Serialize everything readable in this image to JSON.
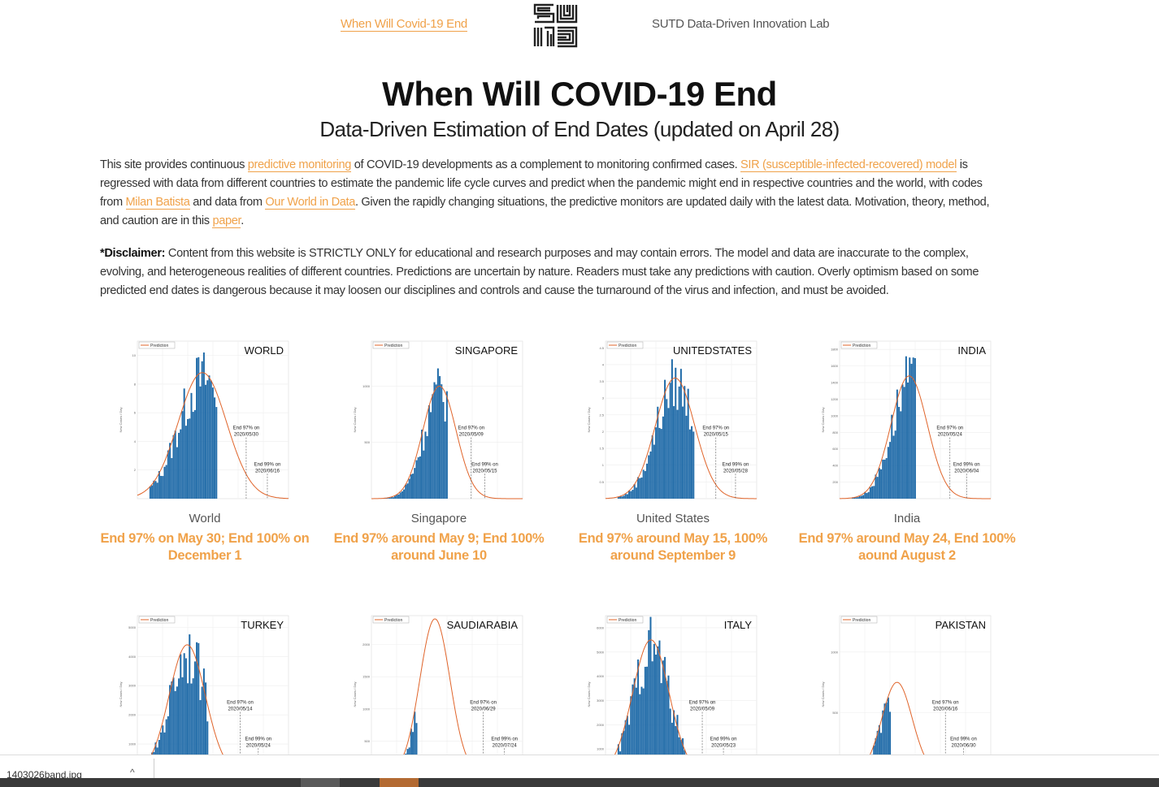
{
  "nav": {
    "home_link": "When Will Covid-19 End",
    "lab": "SUTD Data-Driven Innovation Lab",
    "logo_text": "SUTD"
  },
  "header": {
    "title": "When Will COVID-19 End",
    "subtitle": "Data-Driven Estimation of End Dates (updated on April 28)"
  },
  "intro": {
    "t1": "This site provides continuous ",
    "l1": "predictive monitoring",
    "t2": " of COVID-19 developments as a complement to monitoring confirmed cases. ",
    "l2": "SIR (susceptible-infected-recovered) model",
    "t3": " is regressed with data from different countries to estimate the pandemic life cycle curves and predict when the pandemic might end in respective countries and the world, with codes from ",
    "l3": "Milan Batista",
    "t4": " and data from ",
    "l4": "Our World in Data",
    "t5": ". Given the rapidly changing situations, the predictive monitors are updated daily with the latest data. Motivation, theory, method, and caution are in this ",
    "l5": "paper",
    "t6": "."
  },
  "disclaimer": {
    "label": "*Disclaimer:",
    "text": " Content from this website is STRICTLY ONLY for educational and research purposes and may contain errors. The model and data are inaccurate to the complex, evolving, and heterogeneous realities of different countries. Predictions are uncertain by nature. Readers must take any predictions with caution. Overly optimism based on some predicted end dates is dangerous because it may loosen our disciplines and controls and cause the turnaround of the virus and infection, and must be avoided."
  },
  "chart_common": {
    "legend": "Prediction",
    "ylabel": "New Cases / Day"
  },
  "chart_data": [
    {
      "type": "bar",
      "title": "WORLD",
      "caption": "World",
      "prediction": "End 97% on May 30; End 100% on December 1",
      "end97": "End 97% on",
      "end97_date": "2020/05/30",
      "end99": "End 99% on",
      "end99_date": "2020/06/16",
      "yticks": [
        "2",
        "4",
        "6",
        "8",
        "10"
      ],
      "ymax": 11,
      "peak": 8.8,
      "peak_frac": 0.43,
      "width_frac": 0.16,
      "data_end_frac": 0.52,
      "v97_frac": 0.72,
      "v99_frac": 0.86
    },
    {
      "type": "bar",
      "title": "SINGAPORE",
      "caption": "Singapore",
      "prediction": "End 97% around May 9; End 100% around June 10",
      "end97": "End 97% on",
      "end97_date": "2020/05/09",
      "end99": "End 99% on",
      "end99_date": "2020/05/15",
      "yticks": [
        "500",
        "1000"
      ],
      "ymax": 1400,
      "peak": 1000,
      "peak_frac": 0.45,
      "width_frac": 0.11,
      "data_end_frac": 0.5,
      "v97_frac": 0.66,
      "v99_frac": 0.75
    },
    {
      "type": "bar",
      "title": "UNITEDSTATES",
      "caption": "United States",
      "prediction": "End 97% around May 15, 100% around September 9",
      "end97": "End 97% on",
      "end97_date": "2020/05/15",
      "end99": "End 99% on",
      "end99_date": "2020/05/28",
      "yticks": [
        "0.5",
        "1",
        "1.5",
        "2",
        "2.5",
        "3",
        "3.5",
        "4",
        "4.5"
      ],
      "ymax": 4.7,
      "peak": 3.6,
      "peak_frac": 0.46,
      "width_frac": 0.13,
      "data_end_frac": 0.58,
      "v97_frac": 0.73,
      "v99_frac": 0.86
    },
    {
      "type": "bar",
      "title": "INDIA",
      "caption": "India",
      "prediction": "End 97% around May 24, End 100% aound August 2",
      "end97": "End 97% on",
      "end97_date": "2020/05/24",
      "end99": "End 99% on",
      "end99_date": "2020/06/04",
      "yticks": [
        "200",
        "400",
        "600",
        "800",
        "1000",
        "1200",
        "1400",
        "1600",
        "1800"
      ],
      "ymax": 1900,
      "peak": 1480,
      "peak_frac": 0.46,
      "width_frac": 0.12,
      "data_end_frac": 0.5,
      "v97_frac": 0.73,
      "v99_frac": 0.84
    },
    {
      "type": "bar",
      "title": "TURKEY",
      "caption": "",
      "prediction": "",
      "end97": "End 97% on",
      "end97_date": "2020/05/14",
      "end99": "End 99% on",
      "end99_date": "2020/05/24",
      "yticks": [
        "1000",
        "2000",
        "3000",
        "4000",
        "5000"
      ],
      "ymax": 5400,
      "peak": 4400,
      "peak_frac": 0.33,
      "width_frac": 0.12,
      "data_end_frac": 0.47,
      "v97_frac": 0.68,
      "v99_frac": 0.8
    },
    {
      "type": "bar",
      "title": "SAUDIARABIA",
      "caption": "",
      "prediction": "",
      "end97": "End 97% on",
      "end97_date": "2020/06/29",
      "end99": "End 99% on",
      "end99_date": "2020/07/24",
      "yticks": [
        "500",
        "1000",
        "1500",
        "2000"
      ],
      "ymax": 2450,
      "peak": 2400,
      "peak_frac": 0.42,
      "width_frac": 0.1,
      "data_end_frac": 0.3,
      "v97_frac": 0.74,
      "v99_frac": 0.88
    },
    {
      "type": "bar",
      "title": "ITALY",
      "caption": "",
      "prediction": "",
      "end97": "End 97% on",
      "end97_date": "2020/05/09",
      "end99": "End 99% on",
      "end99_date": "2020/05/23",
      "yticks": [
        "1000",
        "2000",
        "3000",
        "4000",
        "5000",
        "6000"
      ],
      "ymax": 6500,
      "peak": 5500,
      "peak_frac": 0.3,
      "width_frac": 0.12,
      "data_end_frac": 0.58,
      "v97_frac": 0.64,
      "v99_frac": 0.78
    },
    {
      "type": "bar",
      "title": "PAKISTAN",
      "caption": "",
      "prediction": "",
      "end97": "End 97% on",
      "end97_date": "2020/06/16",
      "end99": "End 99% on",
      "end99_date": "2020/06/30",
      "yticks": [
        "500",
        "1000"
      ],
      "ymax": 1300,
      "peak": 750,
      "peak_frac": 0.38,
      "width_frac": 0.1,
      "data_end_frac": 0.33,
      "v97_frac": 0.7,
      "v99_frac": 0.82
    }
  ],
  "download_bar": {
    "file": "1403026band.jpg",
    "chevron": "^"
  }
}
